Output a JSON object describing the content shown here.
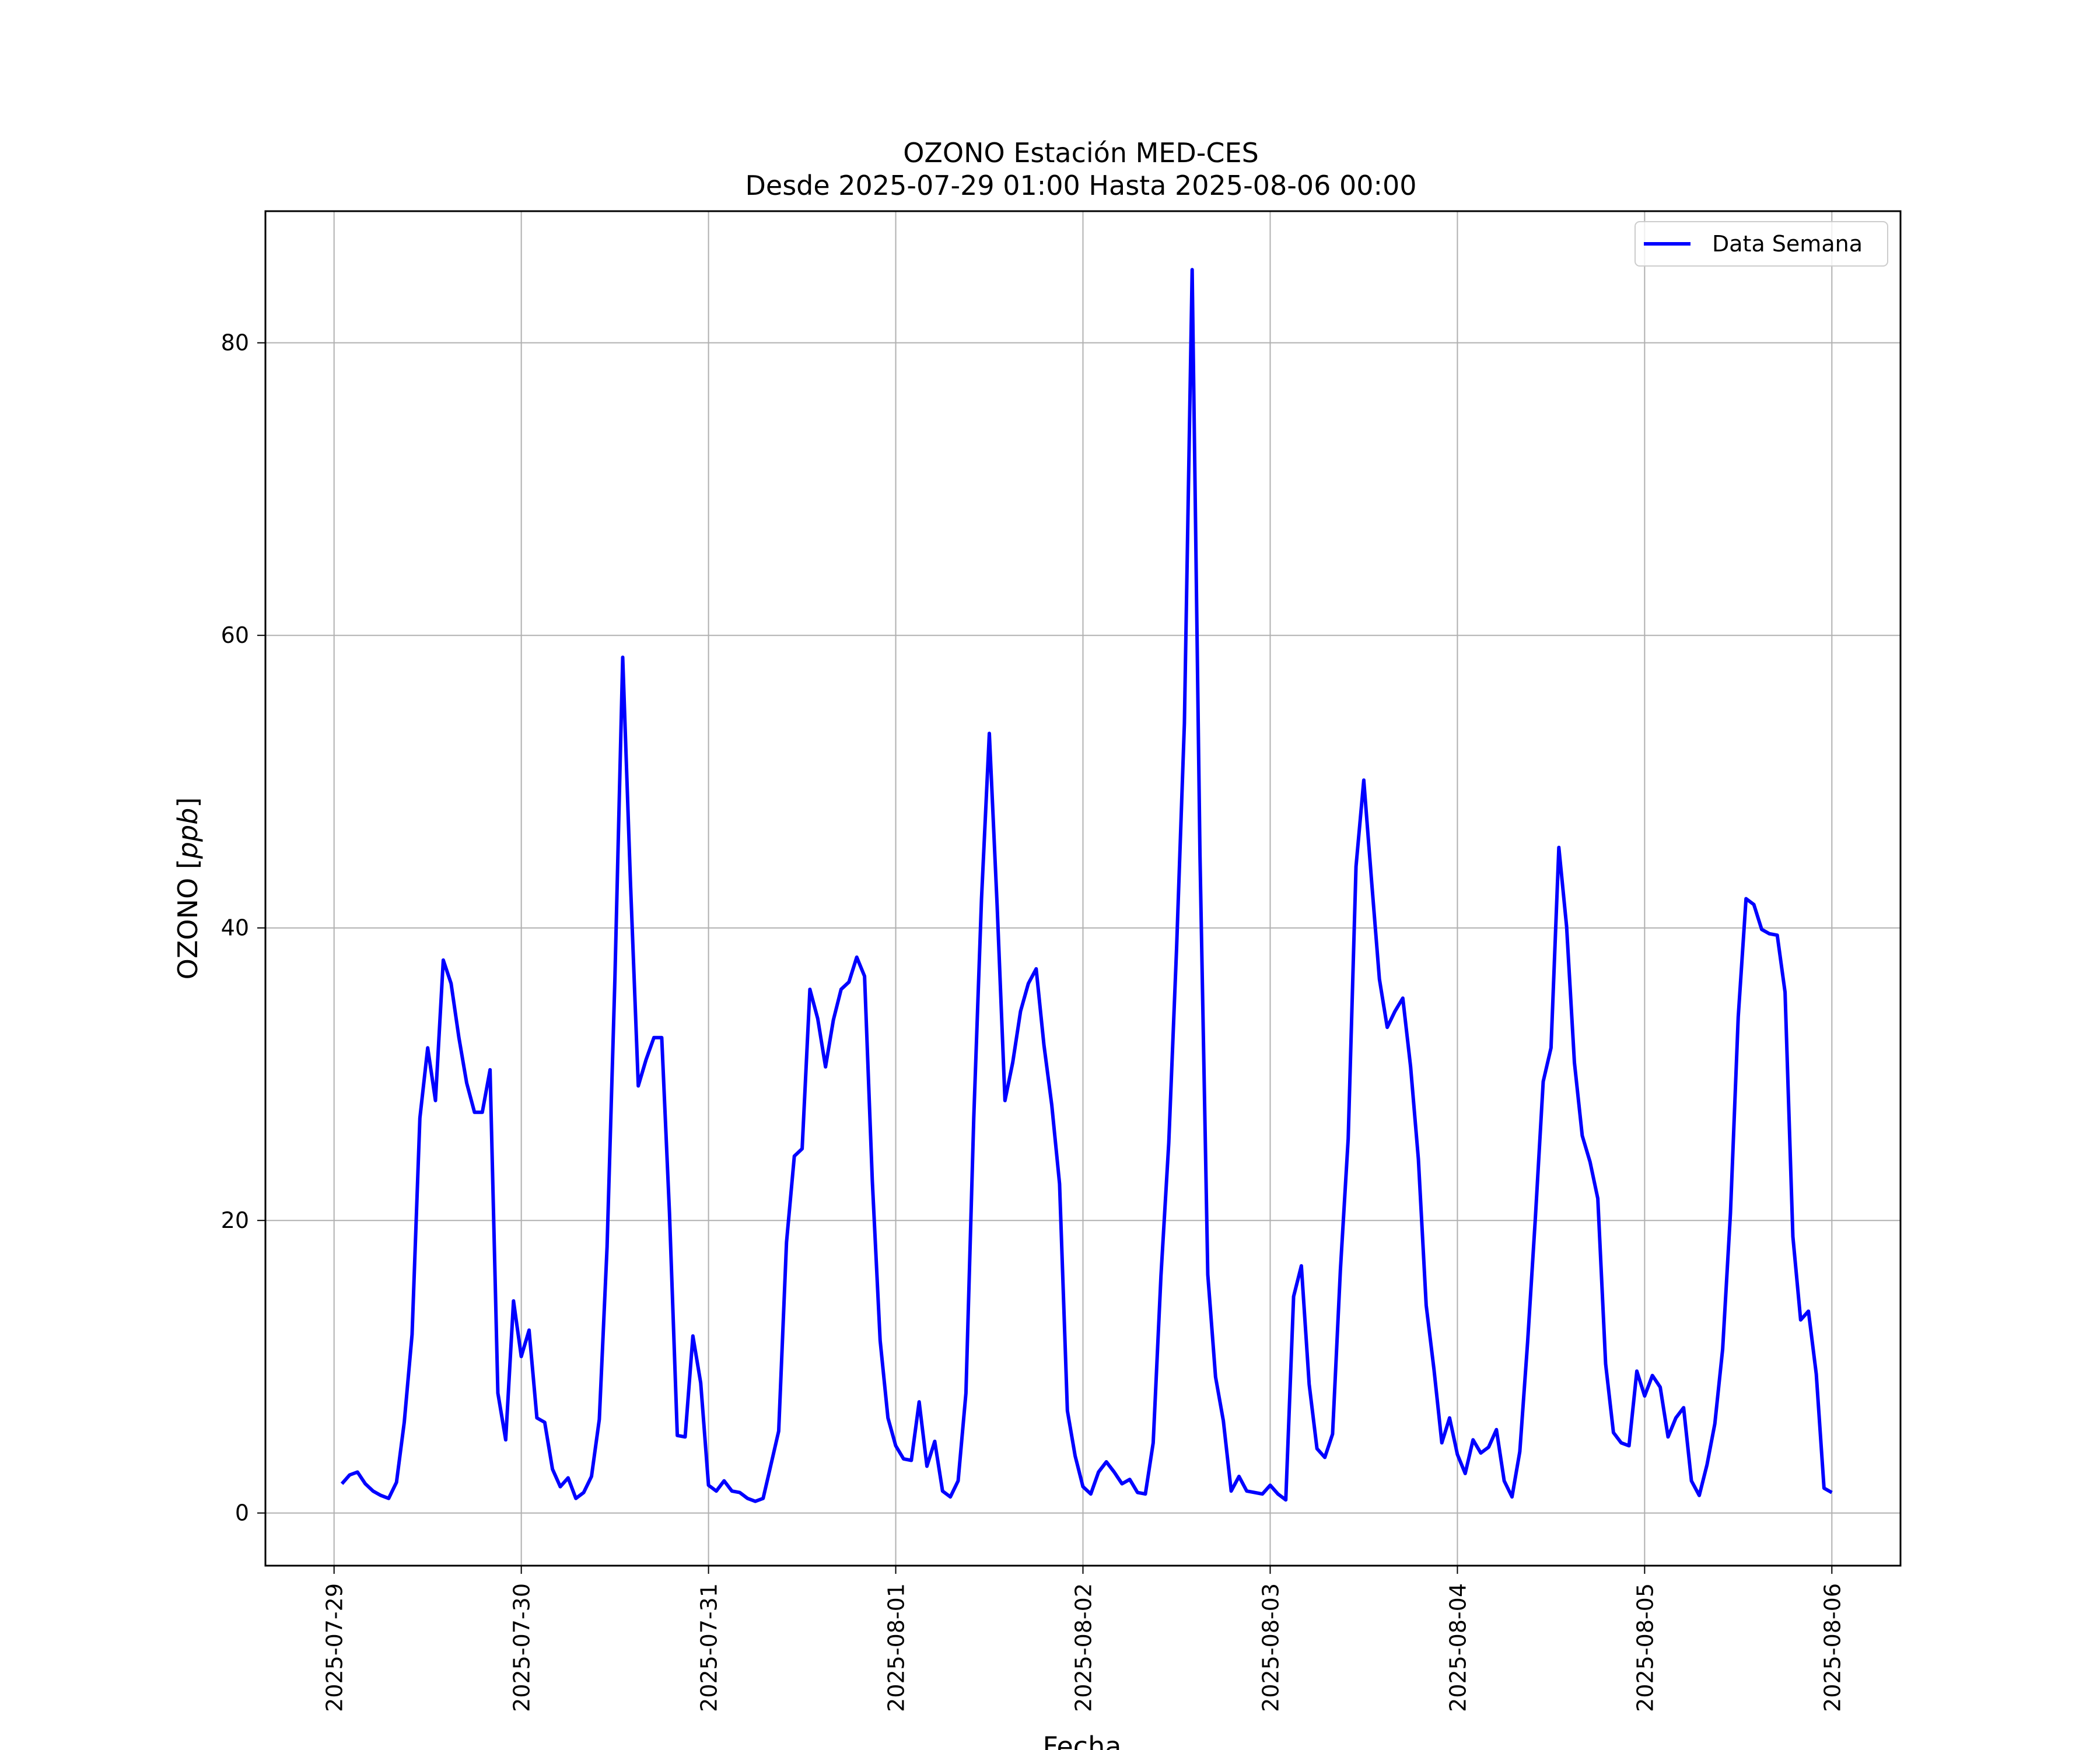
{
  "chart_data": {
    "type": "line",
    "title": "OZONO Estación MED-CES",
    "subtitle": "Desde 2025-07-29 01:00 Hasta 2025-08-06 00:00",
    "xlabel": "Fecha",
    "ylabel": "OZONO [ppb]",
    "ylabel_prefix": "OZONO",
    "ylabel_unit": "ppb",
    "xlim": [
      "2025-07-28 15:12",
      "2025-08-06 08:48"
    ],
    "ylim": [
      -3.6,
      89.0
    ],
    "x_ticks": [
      "2025-07-29",
      "2025-07-30",
      "2025-07-31",
      "2025-08-01",
      "2025-08-02",
      "2025-08-03",
      "2025-08-04",
      "2025-08-05",
      "2025-08-06"
    ],
    "y_ticks": [
      0,
      20,
      40,
      60,
      80
    ],
    "grid": true,
    "legend_position": "top-right",
    "series": [
      {
        "name": "Data Semana",
        "color": "#0000ff",
        "x": [
          "2025-07-29 01:00",
          "2025-07-29 02:00",
          "2025-07-29 03:00",
          "2025-07-29 04:00",
          "2025-07-29 05:00",
          "2025-07-29 06:00",
          "2025-07-29 07:00",
          "2025-07-29 08:00",
          "2025-07-29 09:00",
          "2025-07-29 10:00",
          "2025-07-29 11:00",
          "2025-07-29 12:00",
          "2025-07-29 13:00",
          "2025-07-29 14:00",
          "2025-07-29 15:00",
          "2025-07-29 16:00",
          "2025-07-29 17:00",
          "2025-07-29 18:00",
          "2025-07-29 19:00",
          "2025-07-29 20:00",
          "2025-07-29 21:00",
          "2025-07-29 22:00",
          "2025-07-29 23:00",
          "2025-07-30 00:00",
          "2025-07-30 01:00",
          "2025-07-30 02:00",
          "2025-07-30 03:00",
          "2025-07-30 04:00",
          "2025-07-30 05:00",
          "2025-07-30 06:00",
          "2025-07-30 07:00",
          "2025-07-30 08:00",
          "2025-07-30 09:00",
          "2025-07-30 10:00",
          "2025-07-30 11:00",
          "2025-07-30 12:00",
          "2025-07-30 13:00",
          "2025-07-30 14:00",
          "2025-07-30 15:00",
          "2025-07-30 16:00",
          "2025-07-30 17:00",
          "2025-07-30 18:00",
          "2025-07-30 19:00",
          "2025-07-30 20:00",
          "2025-07-30 21:00",
          "2025-07-30 22:00",
          "2025-07-30 23:00",
          "2025-07-31 00:00",
          "2025-07-31 01:00",
          "2025-07-31 02:00",
          "2025-07-31 03:00",
          "2025-07-31 04:00",
          "2025-07-31 05:00",
          "2025-07-31 06:00",
          "2025-07-31 07:00",
          "2025-07-31 08:00",
          "2025-07-31 09:00",
          "2025-07-31 10:00",
          "2025-07-31 11:00",
          "2025-07-31 12:00",
          "2025-07-31 13:00",
          "2025-07-31 14:00",
          "2025-07-31 15:00",
          "2025-07-31 16:00",
          "2025-07-31 17:00",
          "2025-07-31 18:00",
          "2025-07-31 19:00",
          "2025-07-31 20:00",
          "2025-07-31 21:00",
          "2025-07-31 22:00",
          "2025-07-31 23:00",
          "2025-08-01 00:00",
          "2025-08-01 01:00",
          "2025-08-01 02:00",
          "2025-08-01 03:00",
          "2025-08-01 04:00",
          "2025-08-01 05:00",
          "2025-08-01 06:00",
          "2025-08-01 07:00",
          "2025-08-01 08:00",
          "2025-08-01 09:00",
          "2025-08-01 10:00",
          "2025-08-01 11:00",
          "2025-08-01 12:00",
          "2025-08-01 13:00",
          "2025-08-01 14:00",
          "2025-08-01 15:00",
          "2025-08-01 16:00",
          "2025-08-01 17:00",
          "2025-08-01 18:00",
          "2025-08-01 19:00",
          "2025-08-01 20:00",
          "2025-08-01 21:00",
          "2025-08-01 22:00",
          "2025-08-01 23:00",
          "2025-08-02 00:00",
          "2025-08-02 01:00",
          "2025-08-02 02:00",
          "2025-08-02 03:00",
          "2025-08-02 04:00",
          "2025-08-02 05:00",
          "2025-08-02 06:00",
          "2025-08-02 07:00",
          "2025-08-02 08:00",
          "2025-08-02 09:00",
          "2025-08-02 10:00",
          "2025-08-02 11:00",
          "2025-08-02 12:00",
          "2025-08-02 13:00",
          "2025-08-02 14:00",
          "2025-08-02 15:00",
          "2025-08-02 16:00",
          "2025-08-02 17:00",
          "2025-08-02 18:00",
          "2025-08-02 19:00",
          "2025-08-02 20:00",
          "2025-08-02 21:00",
          "2025-08-02 22:00",
          "2025-08-02 23:00",
          "2025-08-03 00:00",
          "2025-08-03 01:00",
          "2025-08-03 02:00",
          "2025-08-03 03:00",
          "2025-08-03 04:00",
          "2025-08-03 05:00",
          "2025-08-03 06:00",
          "2025-08-03 07:00",
          "2025-08-03 08:00",
          "2025-08-03 09:00",
          "2025-08-03 10:00",
          "2025-08-03 11:00",
          "2025-08-03 12:00",
          "2025-08-03 13:00",
          "2025-08-03 14:00",
          "2025-08-03 15:00",
          "2025-08-03 16:00",
          "2025-08-03 17:00",
          "2025-08-03 18:00",
          "2025-08-03 19:00",
          "2025-08-03 20:00",
          "2025-08-03 21:00",
          "2025-08-03 22:00",
          "2025-08-03 23:00",
          "2025-08-04 00:00",
          "2025-08-04 01:00",
          "2025-08-04 02:00",
          "2025-08-04 03:00",
          "2025-08-04 04:00",
          "2025-08-04 05:00",
          "2025-08-04 06:00",
          "2025-08-04 07:00",
          "2025-08-04 08:00",
          "2025-08-04 09:00",
          "2025-08-04 10:00",
          "2025-08-04 11:00",
          "2025-08-04 12:00",
          "2025-08-04 13:00",
          "2025-08-04 14:00",
          "2025-08-04 15:00",
          "2025-08-04 16:00",
          "2025-08-04 17:00",
          "2025-08-04 18:00",
          "2025-08-04 19:00",
          "2025-08-04 20:00",
          "2025-08-04 21:00",
          "2025-08-04 22:00",
          "2025-08-04 23:00",
          "2025-08-05 00:00",
          "2025-08-05 01:00",
          "2025-08-05 02:00",
          "2025-08-05 03:00",
          "2025-08-05 04:00",
          "2025-08-05 05:00",
          "2025-08-05 06:00",
          "2025-08-05 07:00",
          "2025-08-05 08:00",
          "2025-08-05 09:00",
          "2025-08-05 10:00",
          "2025-08-05 11:00",
          "2025-08-05 12:00",
          "2025-08-05 13:00",
          "2025-08-05 14:00",
          "2025-08-05 15:00",
          "2025-08-05 16:00",
          "2025-08-05 17:00",
          "2025-08-05 18:00",
          "2025-08-05 19:00",
          "2025-08-05 20:00",
          "2025-08-05 21:00",
          "2025-08-05 22:00",
          "2025-08-05 23:00",
          "2025-08-06 00:00"
        ],
        "values": [
          2.0,
          2.6,
          2.8,
          2.0,
          1.5,
          1.2,
          1.0,
          2.1,
          6.2,
          12.2,
          27.0,
          31.8,
          28.2,
          37.8,
          36.2,
          32.5,
          29.4,
          27.4,
          27.4,
          30.3,
          8.2,
          5.0,
          14.5,
          10.7,
          12.5,
          6.5,
          6.2,
          3.0,
          1.8,
          2.4,
          1.0,
          1.4,
          2.5,
          6.4,
          18.2,
          36.5,
          58.5,
          43.0,
          29.2,
          31.0,
          32.5,
          32.5,
          20.5,
          5.3,
          5.2,
          12.1,
          8.9,
          1.9,
          1.5,
          2.2,
          1.5,
          1.4,
          1.0,
          0.8,
          1.0,
          3.3,
          5.6,
          18.5,
          24.4,
          24.9,
          35.8,
          33.8,
          30.5,
          33.7,
          35.8,
          36.3,
          38.0,
          36.7,
          22.7,
          11.8,
          6.5,
          4.6,
          3.7,
          3.6,
          7.6,
          3.2,
          4.9,
          1.5,
          1.1,
          2.2,
          8.2,
          27.0,
          42.0,
          53.3,
          41.5,
          28.2,
          30.8,
          34.3,
          36.2,
          37.2,
          32.0,
          27.9,
          22.5,
          7.0,
          3.9,
          1.8,
          1.3,
          2.8,
          3.5,
          2.8,
          2.0,
          2.3,
          1.4,
          1.3,
          4.8,
          16.2,
          25.3,
          38.6,
          54.0,
          85.0,
          45.0,
          16.3,
          9.3,
          6.3,
          1.5,
          2.5,
          1.5,
          1.4,
          1.3,
          1.9,
          1.3,
          0.9,
          14.8,
          16.9,
          8.8,
          4.4,
          3.8,
          5.4,
          16.6,
          25.6,
          44.2,
          50.1,
          43.2,
          36.5,
          33.2,
          34.3,
          35.2,
          30.5,
          24.2,
          14.2,
          9.8,
          4.8,
          6.5,
          4.0,
          2.7,
          5.0,
          4.1,
          4.5,
          5.7,
          2.2,
          1.1,
          4.2,
          11.7,
          20.2,
          29.5,
          31.8,
          45.5,
          40.1,
          30.8,
          25.8,
          24.0,
          21.5,
          10.2,
          5.5,
          4.8,
          4.6,
          9.7,
          8.0,
          9.4,
          8.6,
          5.2,
          6.5,
          7.2,
          2.2,
          1.2,
          3.3,
          6.1,
          11.2,
          20.5,
          33.9,
          42.0,
          41.6,
          39.9,
          39.6,
          39.5,
          35.6,
          18.9,
          13.2,
          13.8,
          9.5,
          1.7,
          1.4
        ]
      }
    ]
  }
}
